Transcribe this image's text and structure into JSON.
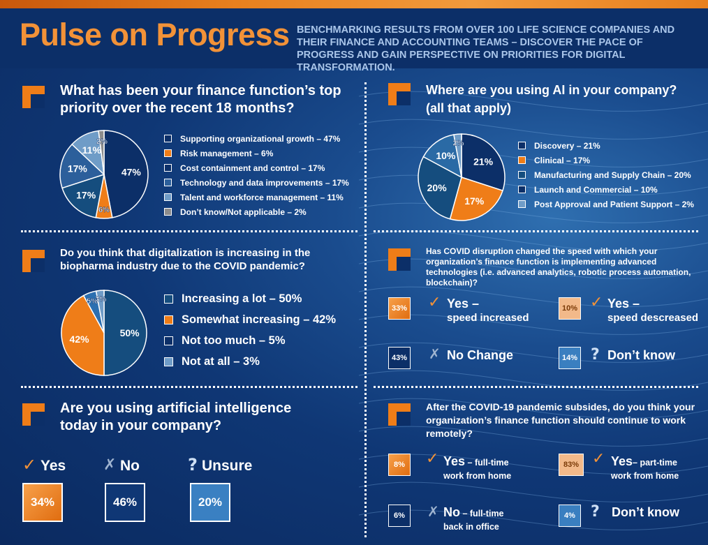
{
  "header": {
    "title": "Pulse on Progress",
    "subtitle": "BENCHMARKING RESULTS FROM OVER 100 LIFE SCIENCE COMPANIES AND THEIR FINANCE AND ACCOUNTING TEAMS – DISCOVER THE PACE OF PROGRESS AND GAIN PERSPECTIVE ON PRIORITIES FOR DIGITAL TRANSFORMATION."
  },
  "colors": {
    "orange": "#ef7d18",
    "light_orange": "#f2b98a",
    "navy": "#0c2f68",
    "dark_navy": "#0a1f52",
    "teal": "#154d7e",
    "mid_blue": "#2c5f9b",
    "light_blue": "#6f9cc7",
    "steel_blue": "#4f8cbf",
    "gray": "#8c8c8c",
    "background": "#0f3775"
  },
  "chart_data": [
    {
      "type": "pie",
      "title": "What has been your finance function’s top priority over the recent 18 months?",
      "categories": [
        "Supporting organizational growth",
        "Risk management",
        "Cost containment and control",
        "Technology and data improvements",
        "Talent and workforce management",
        "Don’t know/Not applicable"
      ],
      "values": [
        47,
        6,
        17,
        17,
        11,
        2
      ],
      "value_labels": [
        "47%",
        "6%",
        "17%",
        "17%",
        "11%",
        "2%"
      ],
      "legend": [
        "Supporting organizational growth – 47%",
        "Risk management – 6%",
        "Cost containment and control – 17%",
        "Technology and data improvements – 17%",
        "Talent and workforce management – 11%",
        "Don’t know/Not applicable – 2%"
      ],
      "colors": [
        "#0c2f68",
        "#ef7d18",
        "#154d7e",
        "#2c5f9b",
        "#6f9cc7",
        "#8c8c8c"
      ],
      "legend_swatches": [
        "#0c2f68",
        "#ef7d18",
        "#0c2f68",
        "#2c5f9b",
        "#6f9cc7",
        "#8c8c8c"
      ],
      "legend_position": "right"
    },
    {
      "type": "pie",
      "title": "Where are you using AI in your company? (all that apply)",
      "categories": [
        "Discovery",
        "Clinical",
        "Manufacturing and Supply Chain",
        "Launch and Commercial",
        "Post Approval and Patient Support"
      ],
      "values": [
        21,
        17,
        20,
        10,
        2
      ],
      "value_labels": [
        "21%",
        "17%",
        "20%",
        "10%",
        "2%"
      ],
      "legend": [
        "Discovery – 21%",
        "Clinical – 17%",
        "Manufacturing and Supply Chain – 20%",
        "Launch and Commercial – 10%",
        "Post Approval and Patient Support – 2%"
      ],
      "colors": [
        "#0c2f68",
        "#ef7d18",
        "#154d7e",
        "#2a6aa5",
        "#6f9cc7"
      ],
      "legend_swatches": [
        "#0c2f68",
        "#ef7d18",
        "#154d7e",
        "#0c2f68",
        "#6f9cc7"
      ],
      "legend_position": "right"
    },
    {
      "type": "pie",
      "title": "Do you think that digitalization is increasing in the biopharma industry due to the COVID pandemic?",
      "categories": [
        "Increasing a lot",
        "Somewhat increasing",
        "Not too much",
        "Not at all"
      ],
      "values": [
        50,
        42,
        5,
        3
      ],
      "value_labels": [
        "50%",
        "42%",
        "5%",
        "3%"
      ],
      "legend": [
        "Increasing a lot – 50%",
        "Somewhat increasing – 42%",
        "Not too much – 5%",
        "Not at all – 3%"
      ],
      "colors": [
        "#154d7e",
        "#ef7d18",
        "#2c6fb0",
        "#6f9cc7"
      ],
      "legend_swatches": [
        "#154d7e",
        "#ef7d18",
        "#0c2f68",
        "#6f9cc7"
      ],
      "legend_position": "right"
    }
  ],
  "ai_today": {
    "question": "Are you using artificial intelligence today in your company?",
    "answers": [
      {
        "label": "Yes",
        "value": "34%",
        "mark": "✓"
      },
      {
        "label": "No",
        "value": "46%",
        "mark": "✗"
      },
      {
        "label": "Unsure",
        "value": "20%",
        "mark": "?"
      }
    ]
  },
  "covid_speed": {
    "question": "Has COVID disruption changed the speed with which your organization’s finance function is implementing advanced technologies (i.e. advanced analytics, robotic process automation, blockchain)?",
    "answers": [
      {
        "value": "33%",
        "line1": "Yes –",
        "line2": "speed increased",
        "mark": "✓"
      },
      {
        "value": "10%",
        "line1": "Yes –",
        "line2": "speed descreased",
        "mark": "✓"
      },
      {
        "value": "43%",
        "line1": "No Change",
        "line2": "",
        "mark": "✗"
      },
      {
        "value": "14%",
        "line1": "Don’t know",
        "line2": "",
        "mark": "?"
      }
    ]
  },
  "remote": {
    "question": "After the COVID-19 pandemic subsides, do you think your organization’s finance function should continue to work remotely?",
    "answers": [
      {
        "value": "8%",
        "bold": "Yes",
        "rest": " – full-time",
        "line2": "work from home",
        "mark": "✓"
      },
      {
        "value": "83%",
        "bold": "Yes",
        "rest": "– part-time",
        "line2": "work from home",
        "mark": "✓"
      },
      {
        "value": "6%",
        "bold": "No",
        "rest": " – full-time",
        "line2": "back in office",
        "mark": "✗"
      },
      {
        "value": "4%",
        "bold": "Don’t know",
        "rest": "",
        "line2": "",
        "mark": "?"
      }
    ]
  }
}
